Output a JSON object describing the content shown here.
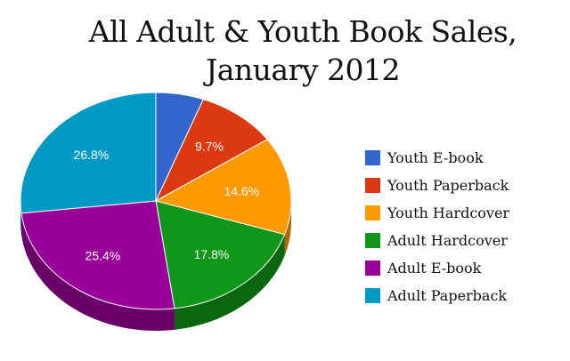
{
  "chart_data": {
    "type": "pie",
    "title": "All Adult & Youth Book Sales,",
    "subtitle": "January 2012",
    "legend_position": "right",
    "slices": [
      {
        "name": "Youth E-book",
        "value": 5.7,
        "label": "",
        "color": "#3366cc"
      },
      {
        "name": "Youth Paperback",
        "value": 9.7,
        "label": "9.7%",
        "color": "#dc3912"
      },
      {
        "name": "Youth Hardcover",
        "value": 14.6,
        "label": "14.6%",
        "color": "#ff9900"
      },
      {
        "name": "Adult Hardcover",
        "value": 17.8,
        "label": "17.8%",
        "color": "#109618"
      },
      {
        "name": "Adult E-book",
        "value": 25.4,
        "label": "25.4%",
        "color": "#990099"
      },
      {
        "name": "Adult Paperback",
        "value": 26.8,
        "label": "26.8%",
        "color": "#0099c6"
      }
    ]
  }
}
